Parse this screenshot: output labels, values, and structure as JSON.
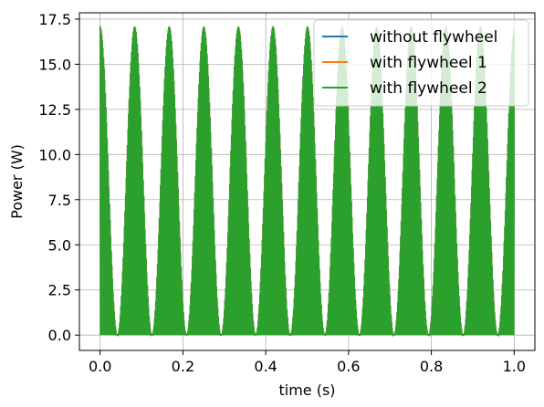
{
  "chart_data": {
    "type": "line",
    "xlabel": "time (s)",
    "ylabel": "Power (W)",
    "xlim": [
      -0.05,
      1.05
    ],
    "ylim": [
      -0.85,
      17.85
    ],
    "xticks": [
      0.0,
      0.2,
      0.4,
      0.6,
      0.8,
      1.0
    ],
    "xtick_labels": [
      "0.0",
      "0.2",
      "0.4",
      "0.6",
      "0.8",
      "1.0"
    ],
    "yticks": [
      0.0,
      2.5,
      5.0,
      7.5,
      10.0,
      12.5,
      15.0,
      17.5
    ],
    "ytick_labels": [
      "0.0",
      "2.5",
      "5.0",
      "7.5",
      "10.0",
      "12.5",
      "15.0",
      "17.5"
    ],
    "grid": true,
    "legend_position": "top-right",
    "series": [
      {
        "name": "without flywheel",
        "color": "#1f77b4",
        "x": [
          0.0,
          1.0
        ],
        "y_envelope_peak": 17.1,
        "y_min": 0.0
      },
      {
        "name": "with flywheel 1",
        "color": "#ff7f0e",
        "x": [
          0.0,
          1.0
        ],
        "y_envelope_peak": 17.1,
        "y_min": 0.0
      },
      {
        "name": "with flywheel 2",
        "color": "#2ca02c",
        "x": [
          0.0,
          1.0
        ],
        "y_envelope_peak": 17.1,
        "y_min": 0.0
      }
    ],
    "envelope": {
      "peak_times": [
        0.0,
        0.167,
        0.333,
        0.5,
        0.667,
        0.833,
        1.0
      ],
      "peak_value": 17.1,
      "trough_times": [
        0.083,
        0.25,
        0.417,
        0.583,
        0.75,
        0.917
      ],
      "trough_value": 0.0
    }
  }
}
